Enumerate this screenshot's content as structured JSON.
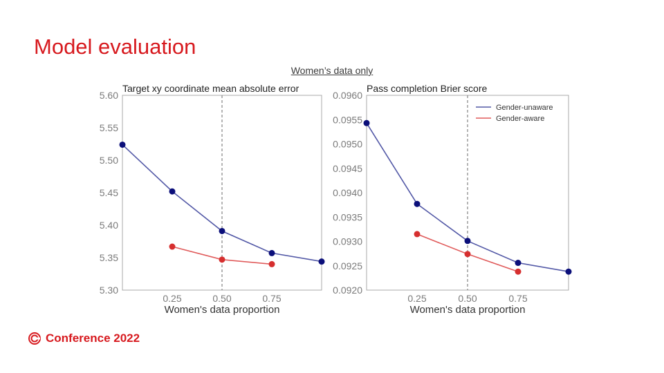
{
  "slide": {
    "title": "Model evaluation",
    "subtitle": "Women’s data only",
    "footer": "Conference 2022"
  },
  "colors": {
    "accent": "#d7191e",
    "gender_unaware": "#0b0f7a",
    "gender_unaware_line": "#5258a6",
    "gender_aware": "#d62f2f",
    "gender_aware_line": "#e05a5a"
  },
  "legend": [
    "Gender-unaware",
    "Gender-aware"
  ],
  "chart_data": [
    {
      "type": "line",
      "title": "Target xy coordinate mean absolute error",
      "xlabel": "Women's data proportion",
      "ylabel": "",
      "xlim": [
        0,
        1
      ],
      "ylim": [
        5.3,
        5.6
      ],
      "xticks": [
        0.25,
        0.5,
        0.75
      ],
      "xtick_labels": [
        "0.25",
        "0.50",
        "0.75"
      ],
      "yticks": [
        5.3,
        5.35,
        5.4,
        5.45,
        5.5,
        5.55,
        5.6
      ],
      "ytick_labels": [
        "5.30",
        "5.35",
        "5.40",
        "5.45",
        "5.50",
        "5.55",
        "5.60"
      ],
      "vline": 0.5,
      "grid": false,
      "legend": "none",
      "series": [
        {
          "name": "Gender-unaware",
          "x": [
            0,
            0.25,
            0.5,
            0.75,
            1.0
          ],
          "y": [
            5.524,
            5.452,
            5.391,
            5.357,
            5.344
          ]
        },
        {
          "name": "Gender-aware",
          "x": [
            0.25,
            0.5,
            0.75
          ],
          "y": [
            5.367,
            5.347,
            5.34
          ]
        }
      ]
    },
    {
      "type": "line",
      "title": "Pass completion Brier score",
      "xlabel": "Women's data proportion",
      "ylabel": "",
      "xlim": [
        0,
        1
      ],
      "ylim": [
        0.092,
        0.096
      ],
      "xticks": [
        0.25,
        0.5,
        0.75
      ],
      "xtick_labels": [
        "0.25",
        "0.50",
        "0.75"
      ],
      "yticks": [
        0.092,
        0.0925,
        0.093,
        0.0935,
        0.094,
        0.0945,
        0.095,
        0.0955,
        0.096
      ],
      "ytick_labels": [
        "0.0920",
        "0.0925",
        "0.0930",
        "0.0935",
        "0.0940",
        "0.0945",
        "0.0950",
        "0.0955",
        "0.0960"
      ],
      "vline": 0.5,
      "grid": false,
      "legend": "top-right",
      "series": [
        {
          "name": "Gender-unaware",
          "x": [
            0,
            0.25,
            0.5,
            0.75,
            1.0
          ],
          "y": [
            0.09543,
            0.09377,
            0.09301,
            0.09256,
            0.09238
          ]
        },
        {
          "name": "Gender-aware",
          "x": [
            0.25,
            0.5,
            0.75
          ],
          "y": [
            0.09315,
            0.09274,
            0.09238
          ]
        }
      ]
    }
  ]
}
